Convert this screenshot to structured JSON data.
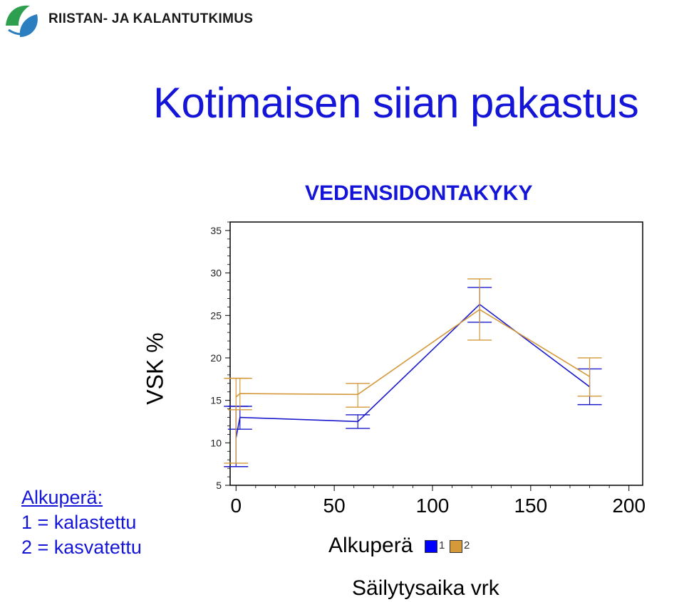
{
  "header": {
    "org_name": "RIISTAN- JA KALANTUTKIMUS",
    "logo_icon": "fish-leaf-logo"
  },
  "slide_title": "Kotimaisen siian pakastus",
  "origin_note": {
    "heading": "Alkuperä:",
    "line1": "1 = kalastettu",
    "line2": "2 = kasvatettu"
  },
  "legend": {
    "title": "Alkuperä",
    "items": [
      {
        "label": "1",
        "color": "#0000ff"
      },
      {
        "label": "2",
        "color": "#d4993a"
      }
    ]
  },
  "chart_data": {
    "type": "line",
    "title": "VEDENSIDONTAKYKY",
    "ylabel": "VSK %",
    "xlabel": "Säilytysaika vrk",
    "xlim": [
      -3,
      207
    ],
    "ylim": [
      5,
      36
    ],
    "x_ticks": [
      0,
      50,
      100,
      150,
      200
    ],
    "y_ticks": [
      5,
      10,
      15,
      20,
      25,
      30,
      35
    ],
    "grid": false,
    "legend_position": "bottom",
    "series": [
      {
        "name": "1",
        "color": "#1a1acc",
        "points": [
          {
            "x": 0,
            "y": 10.6,
            "low": 7.2,
            "high": 14.3
          },
          {
            "x": 2,
            "y": 13.0,
            "low": 11.6,
            "high": 14.3
          },
          {
            "x": 62,
            "y": 12.5,
            "low": 11.7,
            "high": 13.3
          },
          {
            "x": 124,
            "y": 26.3,
            "low": 24.2,
            "high": 28.3
          },
          {
            "x": 180,
            "y": 16.6,
            "low": 14.5,
            "high": 18.7
          }
        ]
      },
      {
        "name": "2",
        "color": "#d4993a",
        "points": [
          {
            "x": 0,
            "y": 15.4,
            "low": 7.6,
            "high": 17.6
          },
          {
            "x": 2,
            "y": 15.8,
            "low": 13.9,
            "high": 17.6
          },
          {
            "x": 62,
            "y": 15.7,
            "low": 14.2,
            "high": 17.0
          },
          {
            "x": 124,
            "y": 25.7,
            "low": 22.1,
            "high": 29.3
          },
          {
            "x": 180,
            "y": 17.8,
            "low": 15.5,
            "high": 20.0
          }
        ]
      }
    ]
  }
}
